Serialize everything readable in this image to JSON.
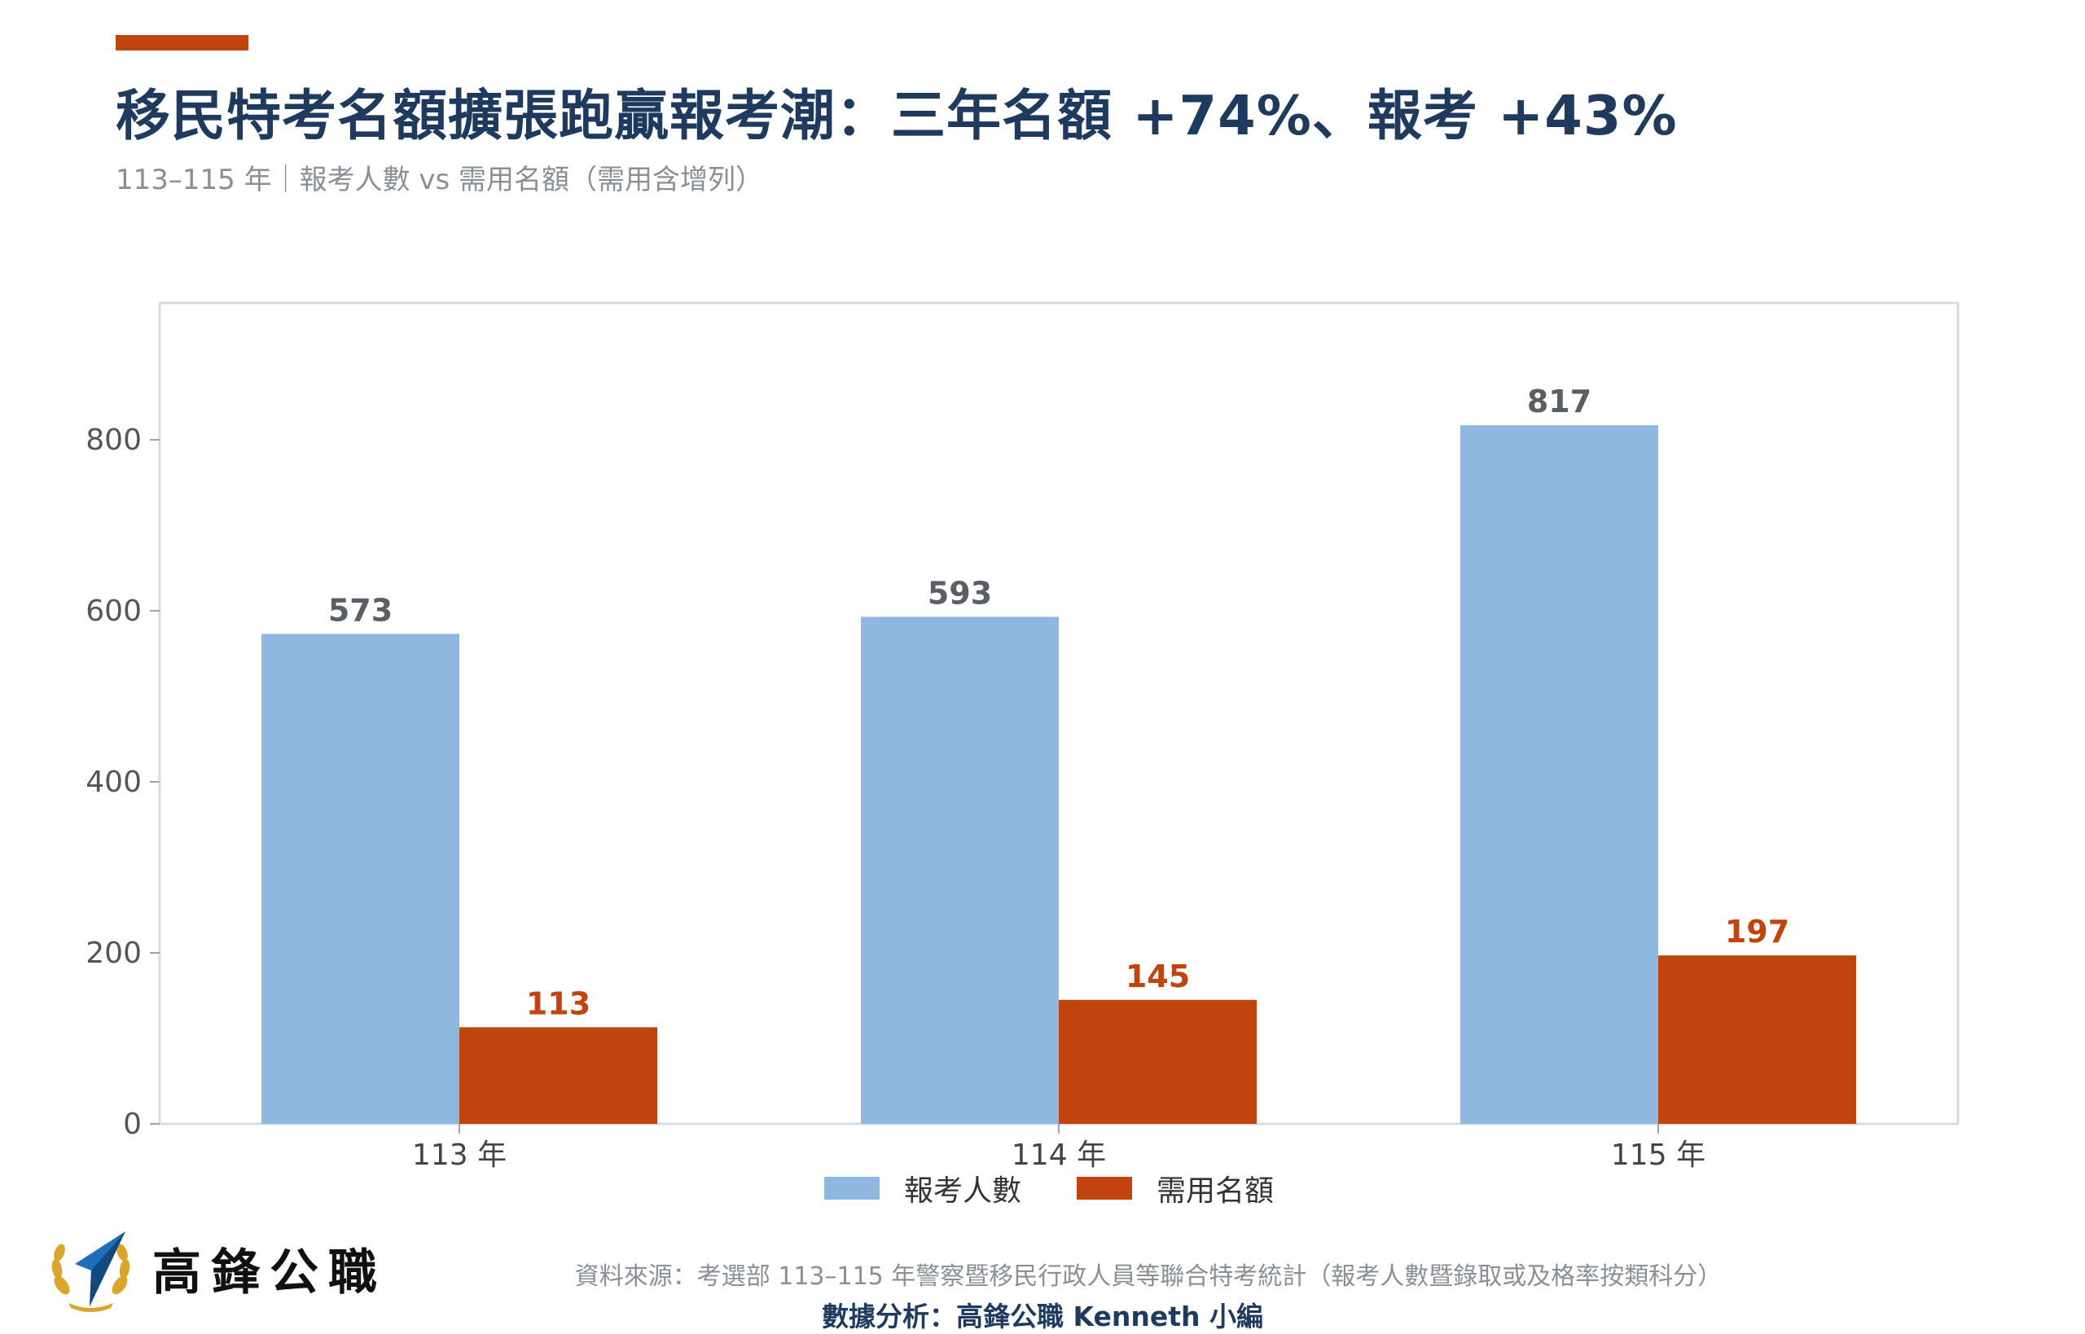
{
  "header": {
    "title": "移民特考名額擴張跑贏報考潮：三年名額 +74%、報考 +43%",
    "subtitle": "113–115 年｜報考人數 vs 需用名額（需用含增列）"
  },
  "colors": {
    "accent": "#c1440e",
    "applicants": "#8fb8e0",
    "quota": "#c1440e",
    "title": "#1f3a5f",
    "muted": "#8a8f96"
  },
  "chart_data": {
    "type": "bar",
    "categories": [
      "113 年",
      "114 年",
      "115 年"
    ],
    "series": [
      {
        "name": "報考人數",
        "values": [
          573,
          593,
          817
        ],
        "color": "#8fb8e0",
        "label_color": "#5a5f66"
      },
      {
        "name": "需用名額",
        "values": [
          113,
          145,
          197
        ],
        "color": "#c1440e",
        "label_color": "#c1440e"
      }
    ],
    "yticks": [
      0,
      200,
      400,
      600,
      800
    ],
    "ylim": [
      0,
      960
    ],
    "grid": false,
    "legend": "bottom-center"
  },
  "footer": {
    "logo_text": "高鋒公職",
    "logo_icon": "compass-laurel-icon",
    "source": "資料來源：考選部 113–115 年警察暨移民行政人員等聯合特考統計（報考人數暨錄取或及格率按類科分）",
    "credit": "數據分析：高鋒公職 Kenneth 小編"
  }
}
